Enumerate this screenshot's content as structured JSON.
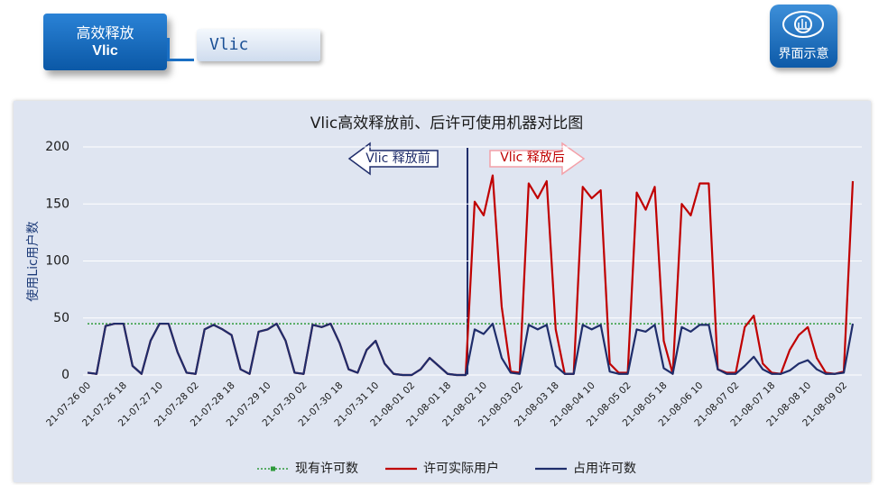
{
  "ui": {
    "main_tab": {
      "line1": "高效释放",
      "line2": "Vlic"
    },
    "sub_tab": "Vlic",
    "icon_label": "界面示意"
  },
  "chart_data": {
    "type": "line",
    "title": "Vlic高效释放前、后许可使用机器对比图",
    "y_label": "使用Lic用户数",
    "annotations": {
      "before": "Vlic 释放前",
      "after": "Vlic 释放后"
    },
    "ylim": [
      0,
      200
    ],
    "yticks": [
      0,
      50,
      100,
      150,
      200
    ],
    "grid": true,
    "legend": "bottom",
    "categories": [
      "21-07-26 00",
      null,
      null,
      null,
      "21-07-26 18",
      null,
      null,
      null,
      "21-07-27 10",
      null,
      null,
      null,
      "21-07-28 02",
      null,
      null,
      null,
      "21-07-28 18",
      null,
      null,
      null,
      "21-07-29 10",
      null,
      null,
      null,
      "21-07-30 02",
      null,
      null,
      null,
      "21-07-30 18",
      null,
      null,
      null,
      "21-07-31 10",
      null,
      null,
      null,
      "21-08-01 02",
      null,
      null,
      null,
      "21-08-01 18",
      null,
      null,
      null,
      "21-08-02 10",
      null,
      null,
      null,
      "21-08-03 02",
      null,
      null,
      null,
      "21-08-03 18",
      null,
      null,
      null,
      "21-08-04 10",
      null,
      null,
      null,
      "21-08-05 02",
      null,
      null,
      null,
      "21-08-05 18",
      null,
      null,
      null,
      "21-08-06 10",
      null,
      null,
      null,
      "21-08-07 02",
      null,
      null,
      null,
      "21-08-07 18",
      null,
      null,
      null,
      "21-08-08 10",
      null,
      null,
      null,
      "21-08-09 02",
      null
    ],
    "series": [
      {
        "name": "现有许可数",
        "color": "#2e9a3a",
        "dashed": true,
        "values": [
          45,
          45,
          45,
          45,
          45,
          45,
          45,
          45,
          45,
          45,
          45,
          45,
          45,
          45,
          45,
          45,
          45,
          45,
          45,
          45,
          45,
          45,
          45,
          45,
          45,
          45,
          45,
          45,
          45,
          45,
          45,
          45,
          45,
          45,
          45,
          45,
          45,
          45,
          45,
          45,
          45,
          45,
          45,
          45,
          45,
          45,
          45,
          45,
          45,
          45,
          45,
          45,
          45,
          45,
          45,
          45,
          45,
          45,
          45,
          45,
          45,
          45,
          45,
          45,
          45,
          45,
          45,
          45,
          45,
          45,
          45,
          45,
          45,
          45,
          45,
          45,
          45,
          45,
          45,
          45,
          45,
          45,
          45,
          45,
          45,
          45
        ]
      },
      {
        "name": "许可实际用户",
        "color": "#c00000",
        "dashed": false,
        "values": [
          2,
          1,
          43,
          45,
          45,
          8,
          1,
          30,
          45,
          45,
          20,
          2,
          1,
          40,
          44,
          40,
          35,
          5,
          1,
          38,
          40,
          45,
          30,
          2,
          1,
          44,
          42,
          45,
          28,
          5,
          2,
          22,
          30,
          10,
          1,
          0,
          0,
          5,
          15,
          8,
          1,
          0,
          0,
          152,
          140,
          175,
          60,
          3,
          2,
          168,
          155,
          170,
          40,
          1,
          1,
          165,
          155,
          162,
          10,
          2,
          2,
          160,
          145,
          165,
          30,
          1,
          150,
          140,
          168,
          168,
          5,
          2,
          2,
          42,
          52,
          10,
          2,
          1,
          22,
          35,
          42,
          15,
          2,
          1,
          3,
          170
        ]
      },
      {
        "name": "占用许可数",
        "color": "#1f2d6b",
        "dashed": false,
        "values": [
          2,
          1,
          43,
          45,
          45,
          8,
          1,
          30,
          45,
          45,
          20,
          2,
          1,
          40,
          44,
          40,
          35,
          5,
          1,
          38,
          40,
          45,
          30,
          2,
          1,
          44,
          42,
          45,
          28,
          5,
          2,
          22,
          30,
          10,
          1,
          0,
          0,
          5,
          15,
          8,
          1,
          0,
          0,
          40,
          36,
          45,
          15,
          2,
          1,
          44,
          40,
          44,
          8,
          1,
          1,
          44,
          40,
          44,
          3,
          1,
          1,
          40,
          38,
          44,
          6,
          1,
          42,
          38,
          44,
          44,
          5,
          1,
          1,
          8,
          16,
          5,
          1,
          1,
          4,
          10,
          13,
          5,
          1,
          1,
          2,
          45
        ]
      }
    ]
  }
}
